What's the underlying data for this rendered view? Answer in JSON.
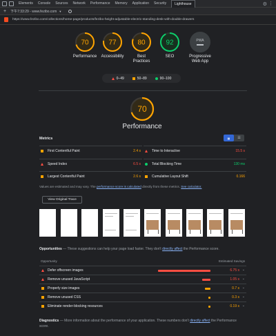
{
  "devtools": {
    "tabs": [
      "Elements",
      "Console",
      "Sources",
      "Network",
      "Performance",
      "Memory",
      "Application",
      "Security",
      "Lighthouse"
    ],
    "active_tab": "Lighthouse",
    "report_label": "下午7:33:29 - www.fezibo.com",
    "url": "https://www.fezibo.com/collections/home-page/products/fezibo-height-adjustable-electric-standing-desk-with-double-drawers"
  },
  "colors": {
    "fail": "#ff4e42",
    "average": "#ffa400",
    "pass": "#0cce6b",
    "link": "#8ab4f8"
  },
  "gauges": [
    {
      "score": 70,
      "label": "Performance",
      "color": "#ffa400"
    },
    {
      "score": 77,
      "label": "Accessibility",
      "color": "#ffa400"
    },
    {
      "score": 80,
      "label": "Best Practices",
      "color": "#ffa400"
    },
    {
      "score": 92,
      "label": "SEO",
      "color": "#0cce6b"
    }
  ],
  "pwa": {
    "badge": "PWA",
    "label": "Progressive Web App"
  },
  "legend": {
    "fail": "0–49",
    "average": "50–89",
    "pass": "90–100"
  },
  "performance": {
    "score": 70,
    "title": "Performance"
  },
  "metrics": {
    "heading": "Metrics",
    "items": [
      {
        "name": "First Contentful Paint",
        "value": "2.4 s",
        "status": "average"
      },
      {
        "name": "Time to Interactive",
        "value": "15.5 s",
        "status": "fail"
      },
      {
        "name": "Speed Index",
        "value": "6.5 s",
        "status": "fail"
      },
      {
        "name": "Total Blocking Time",
        "value": "130 ms",
        "status": "pass"
      },
      {
        "name": "Largest Contentful Paint",
        "value": "2.6 s",
        "status": "average"
      },
      {
        "name": "Cumulative Layout Shift",
        "value": "0.166",
        "status": "average"
      }
    ]
  },
  "note": {
    "before": "Values are estimated and may vary. The ",
    "link1": "performance score is calculated",
    "middle": " directly from these metrics. ",
    "link2": "See calculator."
  },
  "trace_button": "View Original Trace",
  "opportunities": {
    "heading": "Opportunities",
    "desc": " — These suggestions can help your page load faster. They don't ",
    "link": "directly affect",
    "desc_end": " the Performance score.",
    "col_left": "Opportunity",
    "col_right": "Estimated Savings",
    "items": [
      {
        "name": "Defer offscreen images",
        "value": "6.75 s",
        "status": "fail",
        "savings": 6.75
      },
      {
        "name": "Remove unused JavaScript",
        "value": "1.05 s",
        "status": "fail",
        "savings": 1.05
      },
      {
        "name": "Properly size images",
        "value": "0.7 s",
        "status": "average",
        "savings": 0.7
      },
      {
        "name": "Remove unused CSS",
        "value": "0.3 s",
        "status": "average",
        "savings": 0.3
      },
      {
        "name": "Eliminate render-blocking resources",
        "value": "0.19 s",
        "status": "average",
        "savings": 0.19
      }
    ]
  },
  "diagnostics": {
    "heading": "Diagnostics",
    "desc": " — More information about the performance of your application. These numbers don't ",
    "link": "directly affect",
    "desc_end": " the Performance score."
  }
}
